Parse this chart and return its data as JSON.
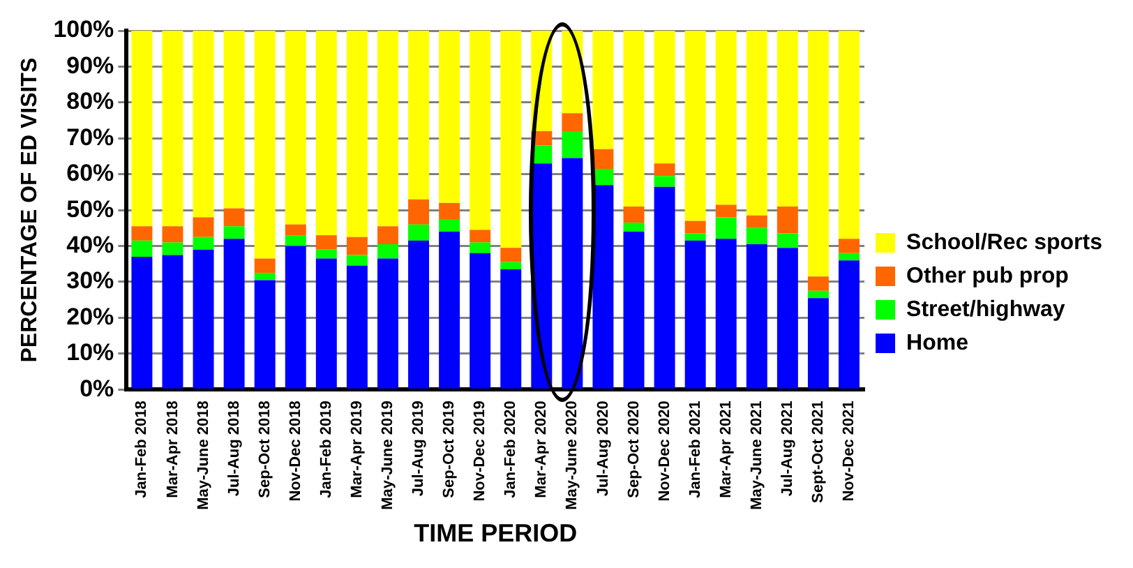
{
  "chart_data": {
    "type": "bar",
    "stacked": true,
    "xlabel": "TIME PERIOD",
    "ylabel": "PERCENTAGE OF ED VISITS",
    "categories": [
      "Jan-Feb 2018",
      "Mar-Apr 2018",
      "May-June 2018",
      "Jul-Aug 2018",
      "Sep-Oct 2018",
      "Nov-Dec 2018",
      "Jan-Feb 2019",
      "Mar-Apr 2019",
      "May-June 2019",
      "Jul-Aug 2019",
      "Sep-Oct 2019",
      "Nov-Dec 2019",
      "Jan-Feb 2020",
      "Mar-Apr 2020",
      "May-June 2020",
      "Jul-Aug 2020",
      "Sep-Oct 2020",
      "Nov-Dec 2020",
      "Jan-Feb 2021",
      "Mar-Apr 2021",
      "May-June 2021",
      "Jul-Aug 2021",
      "Sept-Oct 2021",
      "Nov-Dec 2021"
    ],
    "series": [
      {
        "name": "Home",
        "color": "#0000ff",
        "values": [
          37,
          37.5,
          39,
          42,
          30.5,
          40,
          36.5,
          34.5,
          36.5,
          41.5,
          44,
          38,
          33.5,
          63,
          64.5,
          57,
          44,
          56.5,
          41.5,
          42,
          40.5,
          39.5,
          25.5,
          36
        ]
      },
      {
        "name": "Street/highway",
        "color": "#00ff00",
        "values": [
          4.5,
          3.5,
          3.5,
          3.5,
          2,
          3,
          2.5,
          3,
          4,
          4.5,
          3.5,
          3,
          2,
          5,
          7.5,
          4.5,
          2.5,
          3,
          2,
          6,
          4.5,
          4,
          2,
          2
        ]
      },
      {
        "name": "Other pub prop",
        "color": "#ff6600",
        "values": [
          4,
          4.5,
          5.5,
          5,
          4,
          3,
          4,
          5,
          5,
          7,
          4.5,
          3.5,
          4,
          4,
          5,
          5.5,
          4.5,
          3.5,
          3.5,
          3.5,
          3.5,
          7.5,
          4,
          4
        ]
      },
      {
        "name": "School/Rec sports",
        "color": "#ffff00",
        "values": [
          54.5,
          54.5,
          52,
          49.5,
          63.5,
          54,
          57,
          57.5,
          54.5,
          47,
          48,
          55.5,
          60.5,
          28,
          23,
          33,
          49,
          37,
          53,
          48.5,
          51.5,
          49,
          68.5,
          58
        ]
      }
    ],
    "ylim": [
      0,
      100
    ],
    "yticks": [
      {
        "value": 0,
        "label": "0%"
      },
      {
        "value": 10,
        "label": "10%"
      },
      {
        "value": 20,
        "label": "20%"
      },
      {
        "value": 30,
        "label": "30%"
      },
      {
        "value": 40,
        "label": "40%"
      },
      {
        "value": 50,
        "label": "50%"
      },
      {
        "value": 60,
        "label": "60%"
      },
      {
        "value": 70,
        "label": "70%"
      },
      {
        "value": 80,
        "label": "80%"
      },
      {
        "value": 90,
        "label": "90%"
      },
      {
        "value": 100,
        "label": "100%"
      }
    ],
    "grid": "y",
    "legend": "right"
  }
}
